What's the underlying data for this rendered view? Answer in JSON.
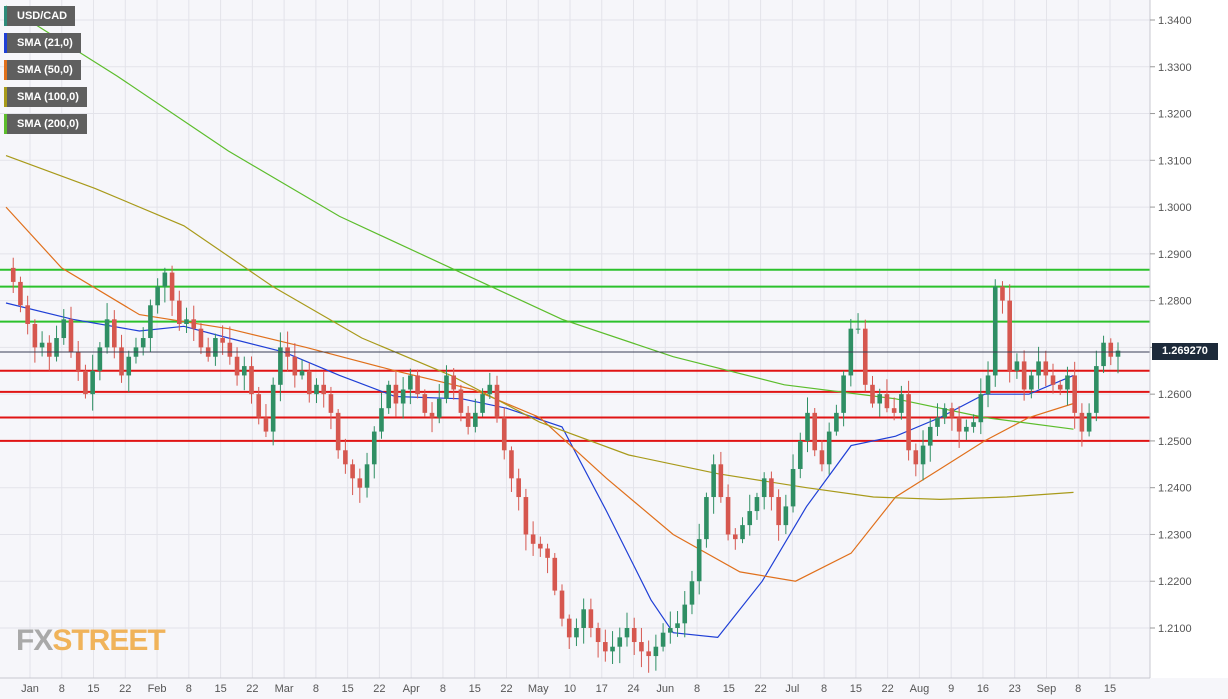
{
  "legend": [
    {
      "label": "USD/CAD",
      "color": "#2e8b7a"
    },
    {
      "label": "SMA (21,0)",
      "color": "#1f3fd6"
    },
    {
      "label": "SMA (50,0)",
      "color": "#e0701c"
    },
    {
      "label": "SMA (100,0)",
      "color": "#a89a1a"
    },
    {
      "label": "SMA (200,0)",
      "color": "#5cbd2c"
    }
  ],
  "watermark": {
    "part1": "FX",
    "part2": "STREET"
  },
  "last_price": "1.269270",
  "chart_data": {
    "type": "candlestick",
    "title": "USD/CAD",
    "ylim": [
      1.2,
      1.345
    ],
    "y_ticks": [
      "1.3400",
      "1.3300",
      "1.3200",
      "1.3100",
      "1.3000",
      "1.2900",
      "1.2800",
      "1.2700",
      "1.2600",
      "1.2500",
      "1.2400",
      "1.2300",
      "1.2200",
      "1.2100"
    ],
    "x_ticks": [
      "Jan",
      "8",
      "15",
      "22",
      "Feb",
      "8",
      "15",
      "22",
      "Mar",
      "8",
      "15",
      "22",
      "Apr",
      "8",
      "15",
      "22",
      "May",
      "10",
      "17",
      "24",
      "Jun",
      "8",
      "15",
      "22",
      "Jul",
      "8",
      "15",
      "22",
      "Aug",
      "9",
      "16",
      "23",
      "Sep",
      "8",
      "15"
    ],
    "grid": true,
    "horizontal_levels": {
      "resistance_green": [
        1.2866,
        1.283,
        1.2755
      ],
      "support_red": [
        1.265,
        1.2605,
        1.255,
        1.25
      ]
    },
    "last_price_value": 1.26927,
    "close_path": [
      1.287,
      1.284,
      1.279,
      1.275,
      1.27,
      1.271,
      1.268,
      1.272,
      1.276,
      1.269,
      1.265,
      1.26,
      1.265,
      1.27,
      1.276,
      1.27,
      1.264,
      1.268,
      1.27,
      1.272,
      1.279,
      1.283,
      1.286,
      1.28,
      1.275,
      1.276,
      1.274,
      1.27,
      1.268,
      1.272,
      1.271,
      1.268,
      1.264,
      1.266,
      1.26,
      1.255,
      1.252,
      1.262,
      1.27,
      1.268,
      1.264,
      1.265,
      1.26,
      1.262,
      1.26,
      1.256,
      1.248,
      1.245,
      1.242,
      1.24,
      1.245,
      1.252,
      1.257,
      1.262,
      1.258,
      1.261,
      1.264,
      1.26,
      1.256,
      1.255,
      1.259,
      1.264,
      1.261,
      1.256,
      1.253,
      1.256,
      1.26,
      1.262,
      1.255,
      1.248,
      1.242,
      1.238,
      1.23,
      1.228,
      1.227,
      1.225,
      1.218,
      1.212,
      1.208,
      1.21,
      1.214,
      1.21,
      1.207,
      1.205,
      1.206,
      1.208,
      1.21,
      1.207,
      1.205,
      1.204,
      1.206,
      1.209,
      1.21,
      1.211,
      1.215,
      1.22,
      1.229,
      1.238,
      1.245,
      1.238,
      1.23,
      1.229,
      1.232,
      1.235,
      1.238,
      1.242,
      1.238,
      1.232,
      1.236,
      1.244,
      1.25,
      1.256,
      1.248,
      1.245,
      1.252,
      1.256,
      1.264,
      1.274,
      1.274,
      1.262,
      1.258,
      1.26,
      1.257,
      1.256,
      1.26,
      1.248,
      1.245,
      1.249,
      1.253,
      1.255,
      1.257,
      1.255,
      1.252,
      1.253,
      1.254,
      1.26,
      1.264,
      1.283,
      1.28,
      1.265,
      1.267,
      1.261,
      1.264,
      1.267,
      1.264,
      1.262,
      1.261,
      1.264,
      1.256,
      1.252,
      1.256,
      1.266,
      1.271,
      1.268,
      1.2693
    ],
    "series": [
      {
        "name": "SMA (21,0)",
        "color": "#1f3fd6",
        "points": [
          [
            0,
            1.2795
          ],
          [
            0.06,
            1.276
          ],
          [
            0.12,
            1.2735
          ],
          [
            0.16,
            1.2745
          ],
          [
            0.2,
            1.272
          ],
          [
            0.25,
            1.269
          ],
          [
            0.3,
            1.264
          ],
          [
            0.35,
            1.2595
          ],
          [
            0.41,
            1.259
          ],
          [
            0.45,
            1.257
          ],
          [
            0.5,
            1.253
          ],
          [
            0.54,
            1.235
          ],
          [
            0.58,
            1.216
          ],
          [
            0.6,
            1.209
          ],
          [
            0.64,
            1.208
          ],
          [
            0.68,
            1.22
          ],
          [
            0.72,
            1.236
          ],
          [
            0.76,
            1.249
          ],
          [
            0.8,
            1.251
          ],
          [
            0.84,
            1.255
          ],
          [
            0.88,
            1.26
          ],
          [
            0.92,
            1.26
          ],
          [
            0.96,
            1.264
          ]
        ]
      },
      {
        "name": "SMA (50,0)",
        "color": "#e0701c",
        "points": [
          [
            0,
            1.3
          ],
          [
            0.05,
            1.287
          ],
          [
            0.12,
            1.277
          ],
          [
            0.2,
            1.274
          ],
          [
            0.27,
            1.27
          ],
          [
            0.35,
            1.265
          ],
          [
            0.42,
            1.261
          ],
          [
            0.48,
            1.255
          ],
          [
            0.54,
            1.242
          ],
          [
            0.6,
            1.23
          ],
          [
            0.66,
            1.222
          ],
          [
            0.71,
            1.22
          ],
          [
            0.76,
            1.226
          ],
          [
            0.8,
            1.238
          ],
          [
            0.84,
            1.244
          ],
          [
            0.88,
            1.25
          ],
          [
            0.92,
            1.255
          ],
          [
            0.96,
            1.258
          ]
        ]
      },
      {
        "name": "SMA (100,0)",
        "color": "#a89a1a",
        "points": [
          [
            0,
            1.311
          ],
          [
            0.08,
            1.304
          ],
          [
            0.16,
            1.296
          ],
          [
            0.24,
            1.283
          ],
          [
            0.32,
            1.272
          ],
          [
            0.4,
            1.264
          ],
          [
            0.48,
            1.254
          ],
          [
            0.56,
            1.247
          ],
          [
            0.64,
            1.243
          ],
          [
            0.72,
            1.24
          ],
          [
            0.78,
            1.238
          ],
          [
            0.84,
            1.2375
          ],
          [
            0.9,
            1.238
          ],
          [
            0.96,
            1.239
          ]
        ]
      },
      {
        "name": "SMA (200,0)",
        "color": "#5cbd2c",
        "points": [
          [
            0,
            1.343
          ],
          [
            0.1,
            1.328
          ],
          [
            0.2,
            1.312
          ],
          [
            0.3,
            1.298
          ],
          [
            0.4,
            1.287
          ],
          [
            0.5,
            1.276
          ],
          [
            0.6,
            1.268
          ],
          [
            0.7,
            1.262
          ],
          [
            0.8,
            1.259
          ],
          [
            0.88,
            1.255
          ],
          [
            0.96,
            1.2525
          ]
        ]
      }
    ]
  }
}
